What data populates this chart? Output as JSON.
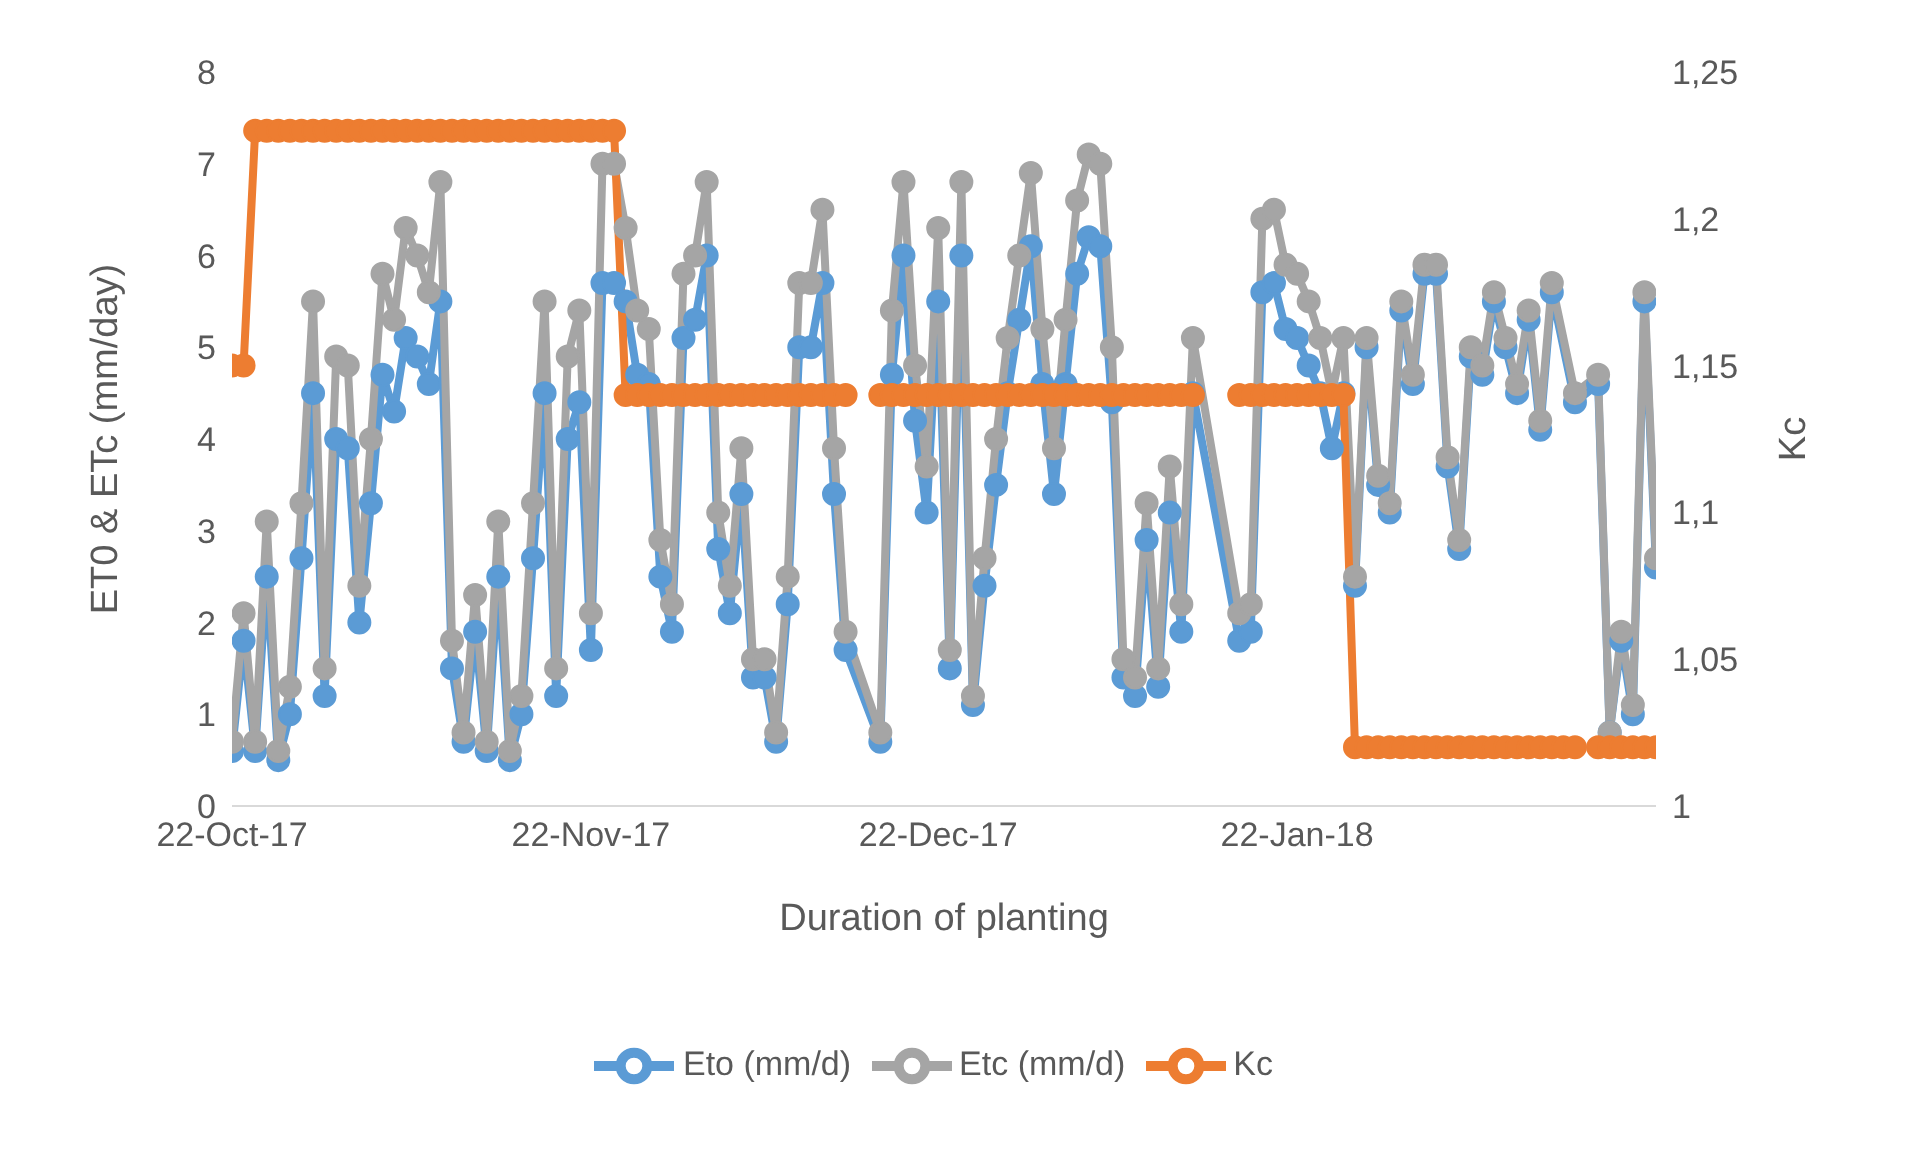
{
  "chart_data": {
    "type": "line",
    "xlabel": "Duration of planting",
    "ylabel": "ET0 & ETc (mm/day)",
    "y2label": "Kc",
    "xlim": [
      "2017-10-22",
      "2018-02-22"
    ],
    "xticks": [
      {
        "value": "2017-10-22",
        "label": "22-Oct-17"
      },
      {
        "value": "2017-11-22",
        "label": "22-Nov-17"
      },
      {
        "value": "2017-12-22",
        "label": "22-Dec-17"
      },
      {
        "value": "2018-01-22",
        "label": "22-Jan-18"
      }
    ],
    "ylim": [
      0,
      8
    ],
    "yticks": [
      0,
      1,
      2,
      3,
      4,
      5,
      6,
      7,
      8
    ],
    "y2lim": [
      1,
      1.25
    ],
    "y2ticks": [
      1,
      {
        "value": 1.05,
        "label": "1,05"
      },
      {
        "value": 1.1,
        "label": "1,1"
      },
      {
        "value": 1.15,
        "label": "1,15"
      },
      {
        "value": 1.2,
        "label": "1,2"
      },
      {
        "value": 1.25,
        "label": "1,25"
      }
    ],
    "marker": "circle",
    "legend": "bottom",
    "x": [
      "2017-10-22",
      "2017-10-23",
      "2017-10-24",
      "2017-10-25",
      "2017-10-26",
      "2017-10-27",
      "2017-10-28",
      "2017-10-29",
      "2017-10-30",
      "2017-10-31",
      "2017-11-01",
      "2017-11-02",
      "2017-11-03",
      "2017-11-04",
      "2017-11-05",
      "2017-11-06",
      "2017-11-07",
      "2017-11-08",
      "2017-11-09",
      "2017-11-10",
      "2017-11-11",
      "2017-11-12",
      "2017-11-13",
      "2017-11-14",
      "2017-11-15",
      "2017-11-16",
      "2017-11-17",
      "2017-11-18",
      "2017-11-19",
      "2017-11-20",
      "2017-11-21",
      "2017-11-22",
      "2017-11-23",
      "2017-11-24",
      "2017-11-25",
      "2017-11-26",
      "2017-11-27",
      "2017-11-28",
      "2017-11-29",
      "2017-11-30",
      "2017-12-01",
      "2017-12-02",
      "2017-12-03",
      "2017-12-04",
      "2017-12-05",
      "2017-12-06",
      "2017-12-07",
      "2017-12-08",
      "2017-12-09",
      "2017-12-10",
      "2017-12-11",
      "2017-12-12",
      "2017-12-13",
      "2017-12-14",
      "2017-12-17",
      "2017-12-18",
      "2017-12-19",
      "2017-12-20",
      "2017-12-21",
      "2017-12-22",
      "2017-12-23",
      "2017-12-24",
      "2017-12-25",
      "2017-12-26",
      "2017-12-27",
      "2017-12-28",
      "2017-12-29",
      "2017-12-30",
      "2017-12-31",
      "2018-01-01",
      "2018-01-02",
      "2018-01-03",
      "2018-01-04",
      "2018-01-05",
      "2018-01-06",
      "2018-01-07",
      "2018-01-08",
      "2018-01-09",
      "2018-01-10",
      "2018-01-11",
      "2018-01-12",
      "2018-01-13",
      "2018-01-17",
      "2018-01-18",
      "2018-01-19",
      "2018-01-20",
      "2018-01-21",
      "2018-01-22",
      "2018-01-23",
      "2018-01-24",
      "2018-01-25",
      "2018-01-26",
      "2018-01-27",
      "2018-01-28",
      "2018-01-29",
      "2018-01-30",
      "2018-01-31",
      "2018-02-01",
      "2018-02-02",
      "2018-02-03",
      "2018-02-04",
      "2018-02-05",
      "2018-02-06",
      "2018-02-07",
      "2018-02-08",
      "2018-02-09",
      "2018-02-10",
      "2018-02-11",
      "2018-02-12",
      "2018-02-13",
      "2018-02-15",
      "2018-02-17",
      "2018-02-18",
      "2018-02-19",
      "2018-02-20",
      "2018-02-21",
      "2018-02-22"
    ],
    "series": [
      {
        "name": "Eto (mm/d)",
        "color": "#5b9bd5",
        "values": [
          0.6,
          1.8,
          0.6,
          2.5,
          0.5,
          1.0,
          2.7,
          4.5,
          1.2,
          4.0,
          3.9,
          2.0,
          3.3,
          4.7,
          4.3,
          5.1,
          4.9,
          4.6,
          5.5,
          1.5,
          0.7,
          1.9,
          0.6,
          2.5,
          0.5,
          1.0,
          2.7,
          4.5,
          1.2,
          4.0,
          4.4,
          1.7,
          5.7,
          5.7,
          5.5,
          4.7,
          4.6,
          2.5,
          1.9,
          5.1,
          5.3,
          6.0,
          2.8,
          2.1,
          3.4,
          1.4,
          1.4,
          0.7,
          2.2,
          5.0,
          5.0,
          5.7,
          3.4,
          1.7,
          0.7,
          4.7,
          6.0,
          4.2,
          3.2,
          5.5,
          1.5,
          6.0,
          1.1,
          2.4,
          3.5,
          4.5,
          5.3,
          6.1,
          4.6,
          3.4,
          4.6,
          5.8,
          6.2,
          6.1,
          4.4,
          1.4,
          1.2,
          2.9,
          1.3,
          3.2,
          1.9,
          4.5,
          1.8,
          1.9,
          5.6,
          5.7,
          5.2,
          5.1,
          4.8,
          4.5,
          3.9,
          4.5,
          2.4,
          5.0,
          3.5,
          3.2,
          5.4,
          4.6,
          5.8,
          5.8,
          3.7,
          2.8,
          4.9,
          4.7,
          5.5,
          5.0,
          4.5,
          5.3,
          4.1,
          5.6,
          4.4,
          4.6,
          0.8,
          1.8,
          1.0,
          5.5,
          2.6
        ]
      },
      {
        "name": "Etc (mm/d)",
        "color": "#a5a5a5",
        "values": [
          0.7,
          2.1,
          0.7,
          3.1,
          0.6,
          1.3,
          3.3,
          5.5,
          1.5,
          4.9,
          4.8,
          2.4,
          4.0,
          5.8,
          5.3,
          6.3,
          6.0,
          5.6,
          6.8,
          1.8,
          0.8,
          2.3,
          0.7,
          3.1,
          0.6,
          1.2,
          3.3,
          5.5,
          1.5,
          4.9,
          5.4,
          2.1,
          7.0,
          7.0,
          6.3,
          5.4,
          5.2,
          2.9,
          2.2,
          5.8,
          6.0,
          6.8,
          3.2,
          2.4,
          3.9,
          1.6,
          1.6,
          0.8,
          2.5,
          5.7,
          5.7,
          6.5,
          3.9,
          1.9,
          0.8,
          5.4,
          6.8,
          4.8,
          3.7,
          6.3,
          1.7,
          6.8,
          1.2,
          2.7,
          4.0,
          5.1,
          6.0,
          6.9,
          5.2,
          3.9,
          5.3,
          6.6,
          7.1,
          7.0,
          5.0,
          1.6,
          1.4,
          3.3,
          1.5,
          3.7,
          2.2,
          5.1,
          2.1,
          2.2,
          6.4,
          6.5,
          5.9,
          5.8,
          5.5,
          5.1,
          4.5,
          5.1,
          2.5,
          5.1,
          3.6,
          3.3,
          5.5,
          4.7,
          5.9,
          5.9,
          3.8,
          2.9,
          5.0,
          4.8,
          5.6,
          5.1,
          4.6,
          5.4,
          4.2,
          5.7,
          4.5,
          4.7,
          0.8,
          1.9,
          1.1,
          5.6,
          2.7
        ]
      },
      {
        "name": "Kc",
        "color": "#ed7d31",
        "axis": "y2",
        "x": [
          "2017-10-22",
          "2017-10-23",
          "2017-10-24",
          "2017-10-25",
          "2017-10-26",
          "2017-10-27",
          "2017-10-28",
          "2017-10-29",
          "2017-10-30",
          "2017-10-31",
          "2017-11-01",
          "2017-11-02",
          "2017-11-03",
          "2017-11-04",
          "2017-11-05",
          "2017-11-06",
          "2017-11-07",
          "2017-11-08",
          "2017-11-09",
          "2017-11-10",
          "2017-11-11",
          "2017-11-12",
          "2017-11-13",
          "2017-11-14",
          "2017-11-15",
          "2017-11-16",
          "2017-11-17",
          "2017-11-18",
          "2017-11-19",
          "2017-11-20",
          "2017-11-21",
          "2017-11-22",
          "2017-11-23",
          "2017-11-24",
          "2017-11-25",
          "2017-11-26",
          "2017-11-27",
          "2017-11-28",
          "2017-11-29",
          "2017-11-30",
          "2017-12-01",
          "2017-12-02",
          "2017-12-03",
          "2017-12-04",
          "2017-12-05",
          "2017-12-06",
          "2017-12-07",
          "2017-12-08",
          "2017-12-09",
          "2017-12-10",
          "2017-12-11",
          "2017-12-12",
          "2017-12-13",
          "2017-12-14",
          "2017-12-15",
          "2017-12-16",
          "2017-12-17",
          "2017-12-18",
          "2017-12-19",
          "2017-12-20",
          "2017-12-21",
          "2017-12-22",
          "2017-12-23",
          "2017-12-24",
          "2017-12-25",
          "2017-12-26",
          "2017-12-27",
          "2017-12-28",
          "2017-12-29",
          "2017-12-30",
          "2017-12-31",
          "2018-01-01",
          "2018-01-02",
          "2018-01-03",
          "2018-01-04",
          "2018-01-05",
          "2018-01-06",
          "2018-01-07",
          "2018-01-08",
          "2018-01-09",
          "2018-01-10",
          "2018-01-11",
          "2018-01-12",
          "2018-01-13",
          "2018-01-14",
          "2018-01-15",
          "2018-01-16",
          "2018-01-17",
          "2018-01-18",
          "2018-01-19",
          "2018-01-20",
          "2018-01-21",
          "2018-01-22",
          "2018-01-23",
          "2018-01-24",
          "2018-01-25",
          "2018-01-26",
          "2018-01-27",
          "2018-01-28",
          "2018-01-29",
          "2018-01-30",
          "2018-01-31",
          "2018-02-01",
          "2018-02-02",
          "2018-02-03",
          "2018-02-04",
          "2018-02-05",
          "2018-02-06",
          "2018-02-07",
          "2018-02-08",
          "2018-02-09",
          "2018-02-10",
          "2018-02-11",
          "2018-02-12",
          "2018-02-13",
          "2018-02-14",
          "2018-02-15",
          "2018-02-16",
          "2018-02-17",
          "2018-02-18",
          "2018-02-19",
          "2018-02-20",
          "2018-02-21",
          "2018-02-22"
        ],
        "values": [
          1.15,
          1.15,
          1.23,
          1.23,
          1.23,
          1.23,
          1.23,
          1.23,
          1.23,
          1.23,
          1.23,
          1.23,
          1.23,
          1.23,
          1.23,
          1.23,
          1.23,
          1.23,
          1.23,
          1.23,
          1.23,
          1.23,
          1.23,
          1.23,
          1.23,
          1.23,
          1.23,
          1.23,
          1.23,
          1.23,
          1.23,
          1.23,
          1.23,
          1.23,
          1.14,
          1.14,
          1.14,
          1.14,
          1.14,
          1.14,
          1.14,
          1.14,
          1.14,
          1.14,
          1.14,
          1.14,
          1.14,
          1.14,
          1.14,
          1.14,
          1.14,
          1.14,
          1.14,
          1.14,
          null,
          null,
          1.14,
          1.14,
          1.14,
          1.14,
          1.14,
          1.14,
          1.14,
          1.14,
          1.14,
          1.14,
          1.14,
          1.14,
          1.14,
          1.14,
          1.14,
          1.14,
          1.14,
          1.14,
          1.14,
          1.14,
          1.14,
          1.14,
          1.14,
          1.14,
          1.14,
          1.14,
          1.14,
          1.14,
          null,
          null,
          null,
          1.14,
          1.14,
          1.14,
          1.14,
          1.14,
          1.14,
          1.14,
          1.14,
          1.14,
          1.14,
          1.02,
          1.02,
          1.02,
          1.02,
          1.02,
          1.02,
          1.02,
          1.02,
          1.02,
          1.02,
          1.02,
          1.02,
          1.02,
          1.02,
          1.02,
          1.02,
          1.02,
          1.02,
          1.02,
          1.02,
          null,
          1.02,
          1.02,
          1.02,
          1.02,
          1.02,
          1.02
        ]
      }
    ]
  }
}
